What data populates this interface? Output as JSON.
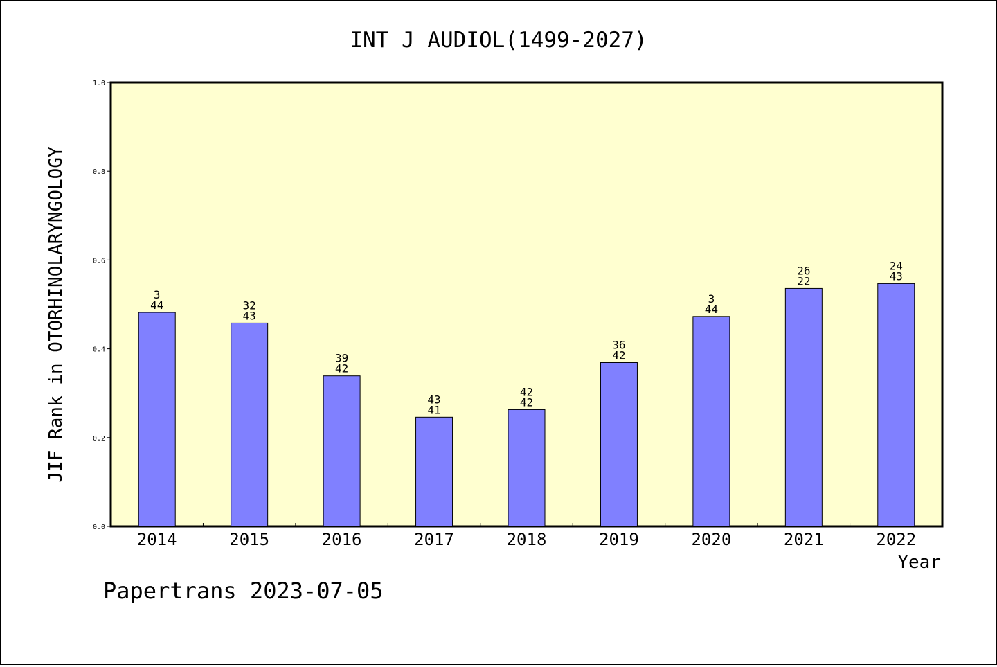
{
  "footer": {
    "credit": "Papertrans 2023-07-05"
  },
  "colors": {
    "plot_background": "#FFFFD0",
    "bar_fill": "#8080FF",
    "bar_stroke": "#000000",
    "frame": "#000000"
  },
  "chart_data": {
    "type": "bar",
    "title": "INT J AUDIOL(1499-2027)",
    "xlabel": "Year",
    "ylabel": "JIF Rank in OTORHINOLARYNGOLOGY",
    "ylim": [
      0,
      1.0
    ],
    "yticks": [
      "0.0",
      "0.2",
      "0.4",
      "0.6",
      "0.8",
      "1.0"
    ],
    "grid": false,
    "categories": [
      "2014",
      "2015",
      "2016",
      "2017",
      "2018",
      "2019",
      "2020",
      "2021",
      "2022"
    ],
    "values": [
      0.482,
      0.458,
      0.339,
      0.246,
      0.263,
      0.369,
      0.473,
      0.536,
      0.547
    ],
    "labels_top": [
      "3",
      "32",
      "39",
      "43",
      "42",
      "36",
      "3",
      "26",
      "24"
    ],
    "labels_bottom": [
      "44",
      "43",
      "42",
      "41",
      "42",
      "42",
      "44",
      "22",
      "43"
    ]
  }
}
